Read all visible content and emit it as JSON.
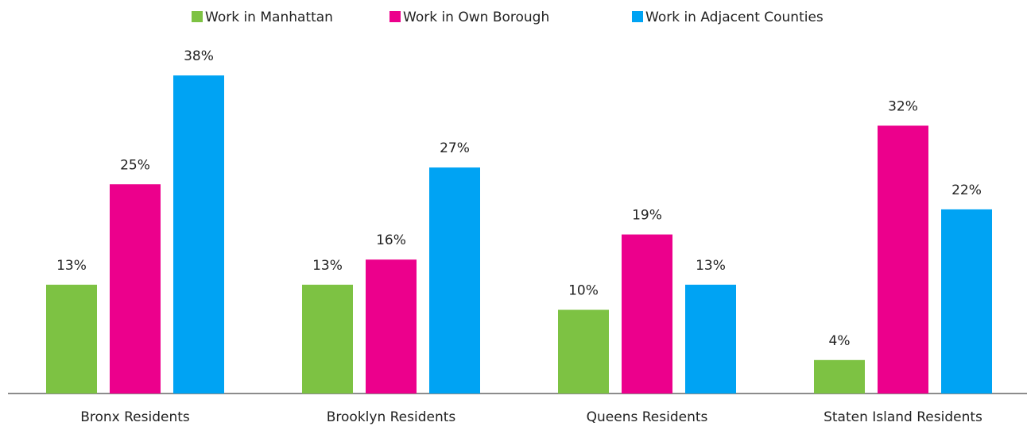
{
  "chart_data": {
    "type": "bar",
    "categories": [
      "Bronx Residents",
      "Brooklyn Residents",
      "Queens Residents",
      "Staten Island Residents"
    ],
    "series": [
      {
        "name": "Work in Manhattan",
        "color": "#7dc243",
        "values": [
          13,
          13,
          10,
          4
        ],
        "value_labels": [
          "13%",
          "13%",
          "10%",
          "4%"
        ]
      },
      {
        "name": "Work in Own Borough",
        "color": "#ec008c",
        "values": [
          25,
          16,
          19,
          32
        ],
        "value_labels": [
          "25%",
          "16%",
          "19%",
          "32%"
        ]
      },
      {
        "name": "Work in Adjacent Counties",
        "color": "#00a3f3",
        "values": [
          38,
          27,
          13,
          22
        ],
        "value_labels": [
          "38%",
          "27%",
          "13%",
          "22%"
        ]
      }
    ],
    "ylim": [
      0,
      40
    ],
    "legend": "top"
  }
}
